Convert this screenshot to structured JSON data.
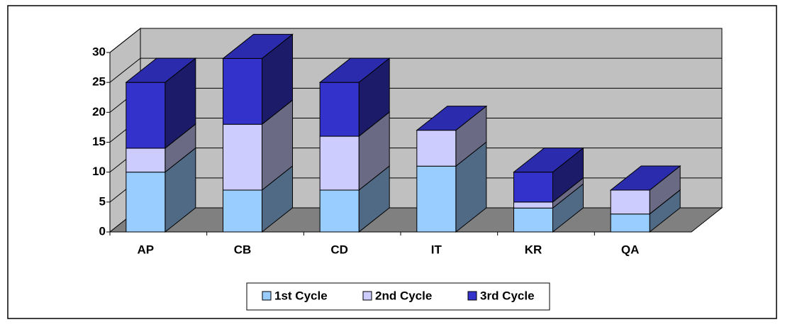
{
  "chart_data": {
    "type": "bar3d_stacked",
    "categories": [
      "AP",
      "CB",
      "CD",
      "IT",
      "KR",
      "QA"
    ],
    "series": [
      {
        "name": "1st Cycle",
        "color": "#99ccff",
        "values": [
          10,
          7,
          7,
          11,
          4,
          3
        ]
      },
      {
        "name": "2nd Cycle",
        "color": "#ccccff",
        "values": [
          4,
          11,
          9,
          6,
          1,
          4
        ]
      },
      {
        "name": "3rd Cycle",
        "color": "#3333cc",
        "values": [
          11,
          11,
          9,
          0,
          5,
          0
        ]
      }
    ],
    "ylim": [
      0,
      30
    ],
    "yticks": [
      0,
      5,
      10,
      15,
      20,
      25,
      30
    ],
    "grid": true,
    "legend": "bottom"
  }
}
